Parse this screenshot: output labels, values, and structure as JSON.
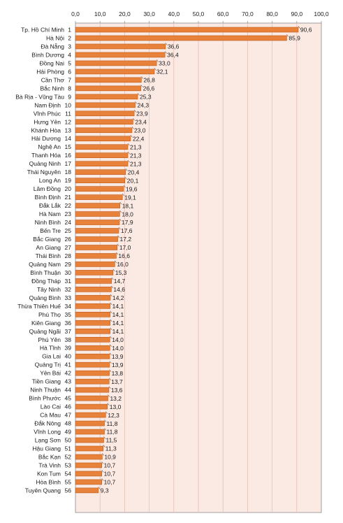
{
  "chart_data": {
    "type": "bar",
    "orientation": "horizontal",
    "title": "",
    "xlabel": "",
    "ylabel": "",
    "xlim": [
      0,
      100
    ],
    "x_ticks": [
      "0,0",
      "10,0",
      "20,0",
      "30,0",
      "40,0",
      "50,0",
      "60,0",
      "70,0",
      "80,0",
      "90,0",
      "100,0"
    ],
    "grid": true,
    "legend": "none",
    "colors": {
      "bar": "#e8823a",
      "bar_edge": "#b95a1c",
      "plot_bg": "#fbe9e3",
      "grid": "#e6b9ad",
      "frame": "#8a8a8a"
    },
    "categories": [
      "Tp. Hồ Chí Minh",
      "Hà Nội",
      "Đà Nẵng",
      "Bình Dương",
      "Đồng Nai",
      "Hải Phòng",
      "Cần Thơ",
      "Bắc Ninh",
      "Bà Rịa - Vũng Tàu",
      "Nam Định",
      "Vĩnh Phúc",
      "Hưng Yên",
      "Khánh Hòa",
      "Hải Dương",
      "Nghệ An",
      "Thanh Hóa",
      "Quảng Ninh",
      "Thái Nguyên",
      "Long An",
      "Lâm Đồng",
      "Bình Định",
      "Đắk Lắk",
      "Hà Nam",
      "Ninh Bình",
      "Bến Tre",
      "Bắc Giang",
      "An Giang",
      "Thái Bình",
      "Quảng Nam",
      "Bình Thuận",
      "Đồng Tháp",
      "Tây Ninh",
      "Quảng Bình",
      "Thừa Thiên Huế",
      "Phú Thọ",
      "Kiên Giang",
      "Quảng Ngãi",
      "Phú Yên",
      "Hà Tĩnh",
      "Gia Lai",
      "Quảng Trị",
      "Yên Bái",
      "Tiền Giang",
      "Ninh Thuận",
      "Bình Phước",
      "Lào Cai",
      "Cà Mau",
      "Đắk Nông",
      "Vĩnh Long",
      "Lạng Sơn",
      "Hậu Giang",
      "Bắc Kạn",
      "Trà Vinh",
      "Kon Tum",
      "Hòa Bình",
      "Tuyên Quang"
    ],
    "ranks": [
      "1",
      "2",
      "3",
      "4",
      "5",
      "6",
      "7",
      "8",
      "9",
      "10",
      "11",
      "12",
      "13",
      "14",
      "15",
      "16",
      "17",
      "18",
      "19",
      "20",
      "21",
      "22",
      "23",
      "24",
      "25",
      "26",
      "27",
      "28",
      "29",
      "30",
      "31",
      "32",
      "33",
      "34",
      "35",
      "36",
      "37",
      "38",
      "39",
      "40",
      "41",
      "42",
      "43",
      "44",
      "45",
      "46",
      "47",
      "48",
      "49",
      "50",
      "51",
      "52",
      "53",
      "54",
      "55",
      "56"
    ],
    "values": [
      90.6,
      85.9,
      36.6,
      36.4,
      33.0,
      32.1,
      26.8,
      26.6,
      25.3,
      24.3,
      23.9,
      23.4,
      23.0,
      22.4,
      21.3,
      21.3,
      21.3,
      20.4,
      20.1,
      19.6,
      19.1,
      18.1,
      18.0,
      17.9,
      17.6,
      17.2,
      17.0,
      16.6,
      16.0,
      15.3,
      14.7,
      14.6,
      14.2,
      14.1,
      14.1,
      14.1,
      14.1,
      14.0,
      14.0,
      13.9,
      13.9,
      13.8,
      13.7,
      13.6,
      13.2,
      13.0,
      12.3,
      11.8,
      11.8,
      11.5,
      11.3,
      10.9,
      10.7,
      10.7,
      10.7,
      9.3
    ],
    "value_labels": [
      "90,6",
      "85,9",
      "36,6",
      "36,4",
      "33,0",
      "32,1",
      "26,8",
      "26,6",
      "25,3",
      "24,3",
      "23,9",
      "23,4",
      "23,0",
      "22,4",
      "21,3",
      "21,3",
      "21,3",
      "20,4",
      "20,1",
      "19,6",
      "19,1",
      "18,1",
      "18,0",
      "17,9",
      "17,6",
      "17,2",
      "17,0",
      "16,6",
      "16,0",
      "15,3",
      "14,7",
      "14,6",
      "14,2",
      "14,1",
      "14,1",
      "14,1",
      "14,1",
      "14,0",
      "14,0",
      "13,9",
      "13,9",
      "13,8",
      "13,7",
      "13,6",
      "13,2",
      "13,0",
      "12,3",
      "11,8",
      "11,8",
      "11,5",
      "11,3",
      "10,9",
      "10,7",
      "10,7",
      "10,7",
      "9,3"
    ]
  }
}
